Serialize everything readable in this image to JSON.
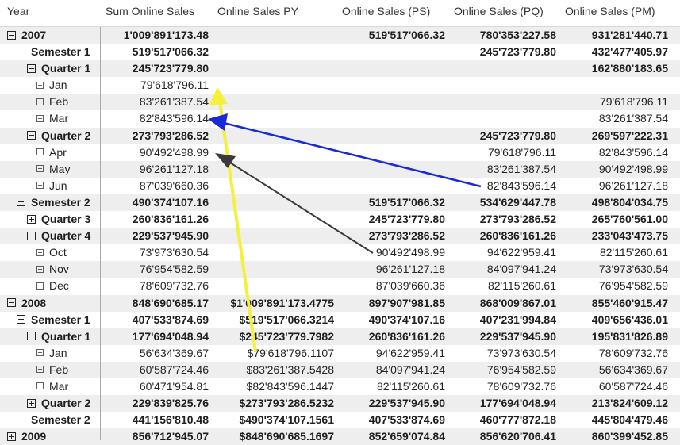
{
  "columns": [
    "Year",
    "Sum Online Sales",
    "Online Sales PY",
    "Online Sales (PS)",
    "Online Sales (PQ)",
    "Online Sales (PM)"
  ],
  "rows": [
    {
      "label": "2007",
      "level": 0,
      "toggle": "minus",
      "bold": true,
      "alt": true,
      "values": [
        "1'009'891'173.48",
        "",
        "519'517'066.32",
        "780'353'227.58",
        "931'281'440.71"
      ]
    },
    {
      "label": "Semester 1",
      "level": 1,
      "toggle": "minus",
      "bold": true,
      "alt": false,
      "values": [
        "519'517'066.32",
        "",
        "",
        "245'723'779.80",
        "432'477'405.97"
      ]
    },
    {
      "label": "Quarter 1",
      "level": 2,
      "toggle": "minus",
      "bold": true,
      "alt": true,
      "values": [
        "245'723'779.80",
        "",
        "",
        "",
        "162'880'183.65"
      ]
    },
    {
      "label": "Jan",
      "level": 3,
      "toggle": "plus",
      "bold": false,
      "alt": false,
      "values": [
        "79'618'796.11",
        "",
        "",
        "",
        ""
      ]
    },
    {
      "label": "Feb",
      "level": 3,
      "toggle": "plus",
      "bold": false,
      "alt": true,
      "values": [
        "83'261'387.54",
        "",
        "",
        "",
        "79'618'796.11"
      ]
    },
    {
      "label": "Mar",
      "level": 3,
      "toggle": "plus",
      "bold": false,
      "alt": false,
      "values": [
        "82'843'596.14",
        "",
        "",
        "",
        "83'261'387.54"
      ]
    },
    {
      "label": "Quarter 2",
      "level": 2,
      "toggle": "minus",
      "bold": true,
      "alt": true,
      "values": [
        "273'793'286.52",
        "",
        "",
        "245'723'779.80",
        "269'597'222.31"
      ]
    },
    {
      "label": "Apr",
      "level": 3,
      "toggle": "plus",
      "bold": false,
      "alt": false,
      "values": [
        "90'492'498.99",
        "",
        "",
        "79'618'796.11",
        "82'843'596.14"
      ]
    },
    {
      "label": "May",
      "level": 3,
      "toggle": "plus",
      "bold": false,
      "alt": true,
      "values": [
        "96'261'127.18",
        "",
        "",
        "83'261'387.54",
        "90'492'498.99"
      ]
    },
    {
      "label": "Jun",
      "level": 3,
      "toggle": "plus",
      "bold": false,
      "alt": false,
      "values": [
        "87'039'660.36",
        "",
        "",
        "82'843'596.14",
        "96'261'127.18"
      ]
    },
    {
      "label": "Semester 2",
      "level": 1,
      "toggle": "minus",
      "bold": true,
      "alt": true,
      "values": [
        "490'374'107.16",
        "",
        "519'517'066.32",
        "534'629'447.78",
        "498'804'034.75"
      ]
    },
    {
      "label": "Quarter 3",
      "level": 2,
      "toggle": "plus",
      "bold": true,
      "alt": false,
      "values": [
        "260'836'161.26",
        "",
        "245'723'779.80",
        "273'793'286.52",
        "265'760'561.00"
      ]
    },
    {
      "label": "Quarter 4",
      "level": 2,
      "toggle": "minus",
      "bold": true,
      "alt": true,
      "values": [
        "229'537'945.90",
        "",
        "273'793'286.52",
        "260'836'161.26",
        "233'043'473.75"
      ]
    },
    {
      "label": "Oct",
      "level": 3,
      "toggle": "plus",
      "bold": false,
      "alt": false,
      "values": [
        "73'973'630.54",
        "",
        "90'492'498.99",
        "94'622'959.41",
        "82'115'260.61"
      ]
    },
    {
      "label": "Nov",
      "level": 3,
      "toggle": "plus",
      "bold": false,
      "alt": true,
      "values": [
        "76'954'582.59",
        "",
        "96'261'127.18",
        "84'097'941.24",
        "73'973'630.54"
      ]
    },
    {
      "label": "Dec",
      "level": 3,
      "toggle": "plus",
      "bold": false,
      "alt": false,
      "values": [
        "78'609'732.76",
        "",
        "87'039'660.36",
        "82'115'260.61",
        "76'954'582.59"
      ]
    },
    {
      "label": "2008",
      "level": 0,
      "toggle": "minus",
      "bold": true,
      "alt": true,
      "values": [
        "848'690'685.17",
        "$1'009'891'173.4775",
        "897'907'981.85",
        "868'009'867.01",
        "855'460'915.47"
      ]
    },
    {
      "label": "Semester 1",
      "level": 1,
      "toggle": "minus",
      "bold": true,
      "alt": false,
      "values": [
        "407'533'874.69",
        "$519'517'066.3214",
        "490'374'107.16",
        "407'231'994.84",
        "409'656'436.01"
      ]
    },
    {
      "label": "Quarter 1",
      "level": 2,
      "toggle": "minus",
      "bold": true,
      "alt": true,
      "values": [
        "177'694'048.94",
        "$245'723'779.7982",
        "260'836'161.26",
        "229'537'945.90",
        "195'831'826.89"
      ]
    },
    {
      "label": "Jan",
      "level": 3,
      "toggle": "plus",
      "bold": false,
      "alt": false,
      "values": [
        "56'634'369.67",
        "$79'618'796.1107",
        "94'622'959.41",
        "73'973'630.54",
        "78'609'732.76"
      ]
    },
    {
      "label": "Feb",
      "level": 3,
      "toggle": "plus",
      "bold": false,
      "alt": true,
      "values": [
        "60'587'724.46",
        "$83'261'387.5428",
        "84'097'941.24",
        "76'954'582.59",
        "56'634'369.67"
      ]
    },
    {
      "label": "Mar",
      "level": 3,
      "toggle": "plus",
      "bold": false,
      "alt": false,
      "values": [
        "60'471'954.81",
        "$82'843'596.1447",
        "82'115'260.61",
        "78'609'732.76",
        "60'587'724.46"
      ]
    },
    {
      "label": "Quarter 2",
      "level": 2,
      "toggle": "plus",
      "bold": true,
      "alt": true,
      "values": [
        "229'839'825.76",
        "$273'793'286.5232",
        "229'537'945.90",
        "177'694'048.94",
        "213'824'609.12"
      ]
    },
    {
      "label": "Semester 2",
      "level": 1,
      "toggle": "plus",
      "bold": true,
      "alt": false,
      "values": [
        "441'156'810.48",
        "$490'374'107.1561",
        "407'533'874.69",
        "460'777'872.18",
        "445'804'479.46"
      ]
    },
    {
      "label": "2009",
      "level": 0,
      "toggle": "plus",
      "bold": true,
      "alt": true,
      "values": [
        "856'712'945.07",
        "$848'690'685.1697",
        "852'659'074.84",
        "856'620'706.41",
        "860'399'452.85"
      ]
    }
  ],
  "annotations": {
    "colors": {
      "yellow": "#f5f03c",
      "blue": "#1a2ad6",
      "gray": "#3a3a3a"
    }
  }
}
